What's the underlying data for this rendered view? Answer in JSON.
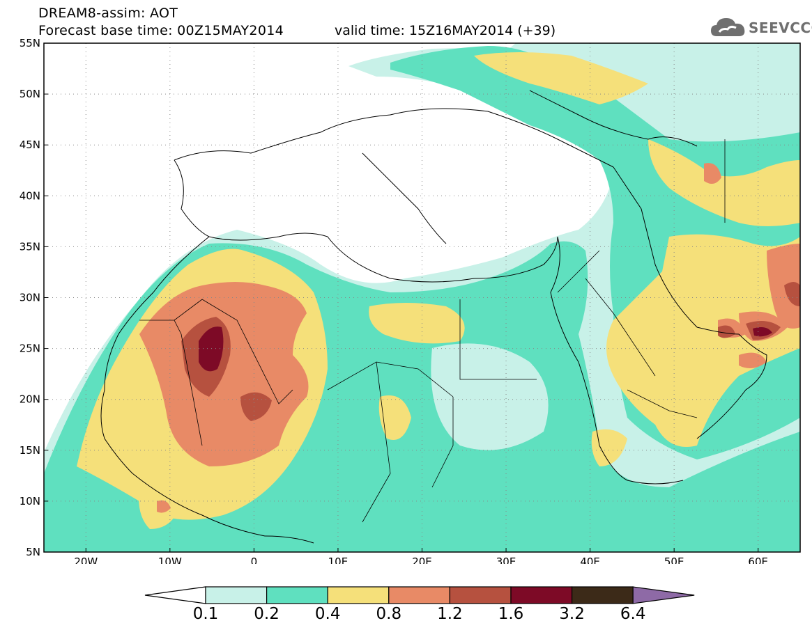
{
  "header": {
    "title_line1": "DREAM8-assim: AOT",
    "title_line2": "Forecast base time: 00Z15MAY2014",
    "valid_time": "valid time: 15Z16MAY2014 (+39)"
  },
  "logo": {
    "text": "SEEVCCC",
    "icon": "cloud-icon"
  },
  "map": {
    "lon_range": [
      -25,
      65
    ],
    "lat_range": [
      5,
      55
    ],
    "lat_ticks": [
      "55N",
      "50N",
      "45N",
      "40N",
      "35N",
      "30N",
      "25N",
      "20N",
      "15N",
      "10N",
      "5N"
    ],
    "lon_ticks": [
      "20W",
      "10W",
      "0",
      "10E",
      "20E",
      "30E",
      "40E",
      "50E",
      "60E"
    ],
    "grid": "dotted"
  },
  "colorbar": {
    "labels": [
      "0.1",
      "0.2",
      "0.4",
      "0.8",
      "1.2",
      "1.6",
      "3.2",
      "6.4"
    ],
    "colors": {
      "below": "#ffffff",
      "c1": "#c8f1e8",
      "c2": "#5fe0bf",
      "c3": "#f5e07a",
      "c4": "#e88a66",
      "c5": "#b6513f",
      "c6": "#7d0a26",
      "c7": "#3c2a18",
      "above": "#8e6aa6"
    }
  }
}
